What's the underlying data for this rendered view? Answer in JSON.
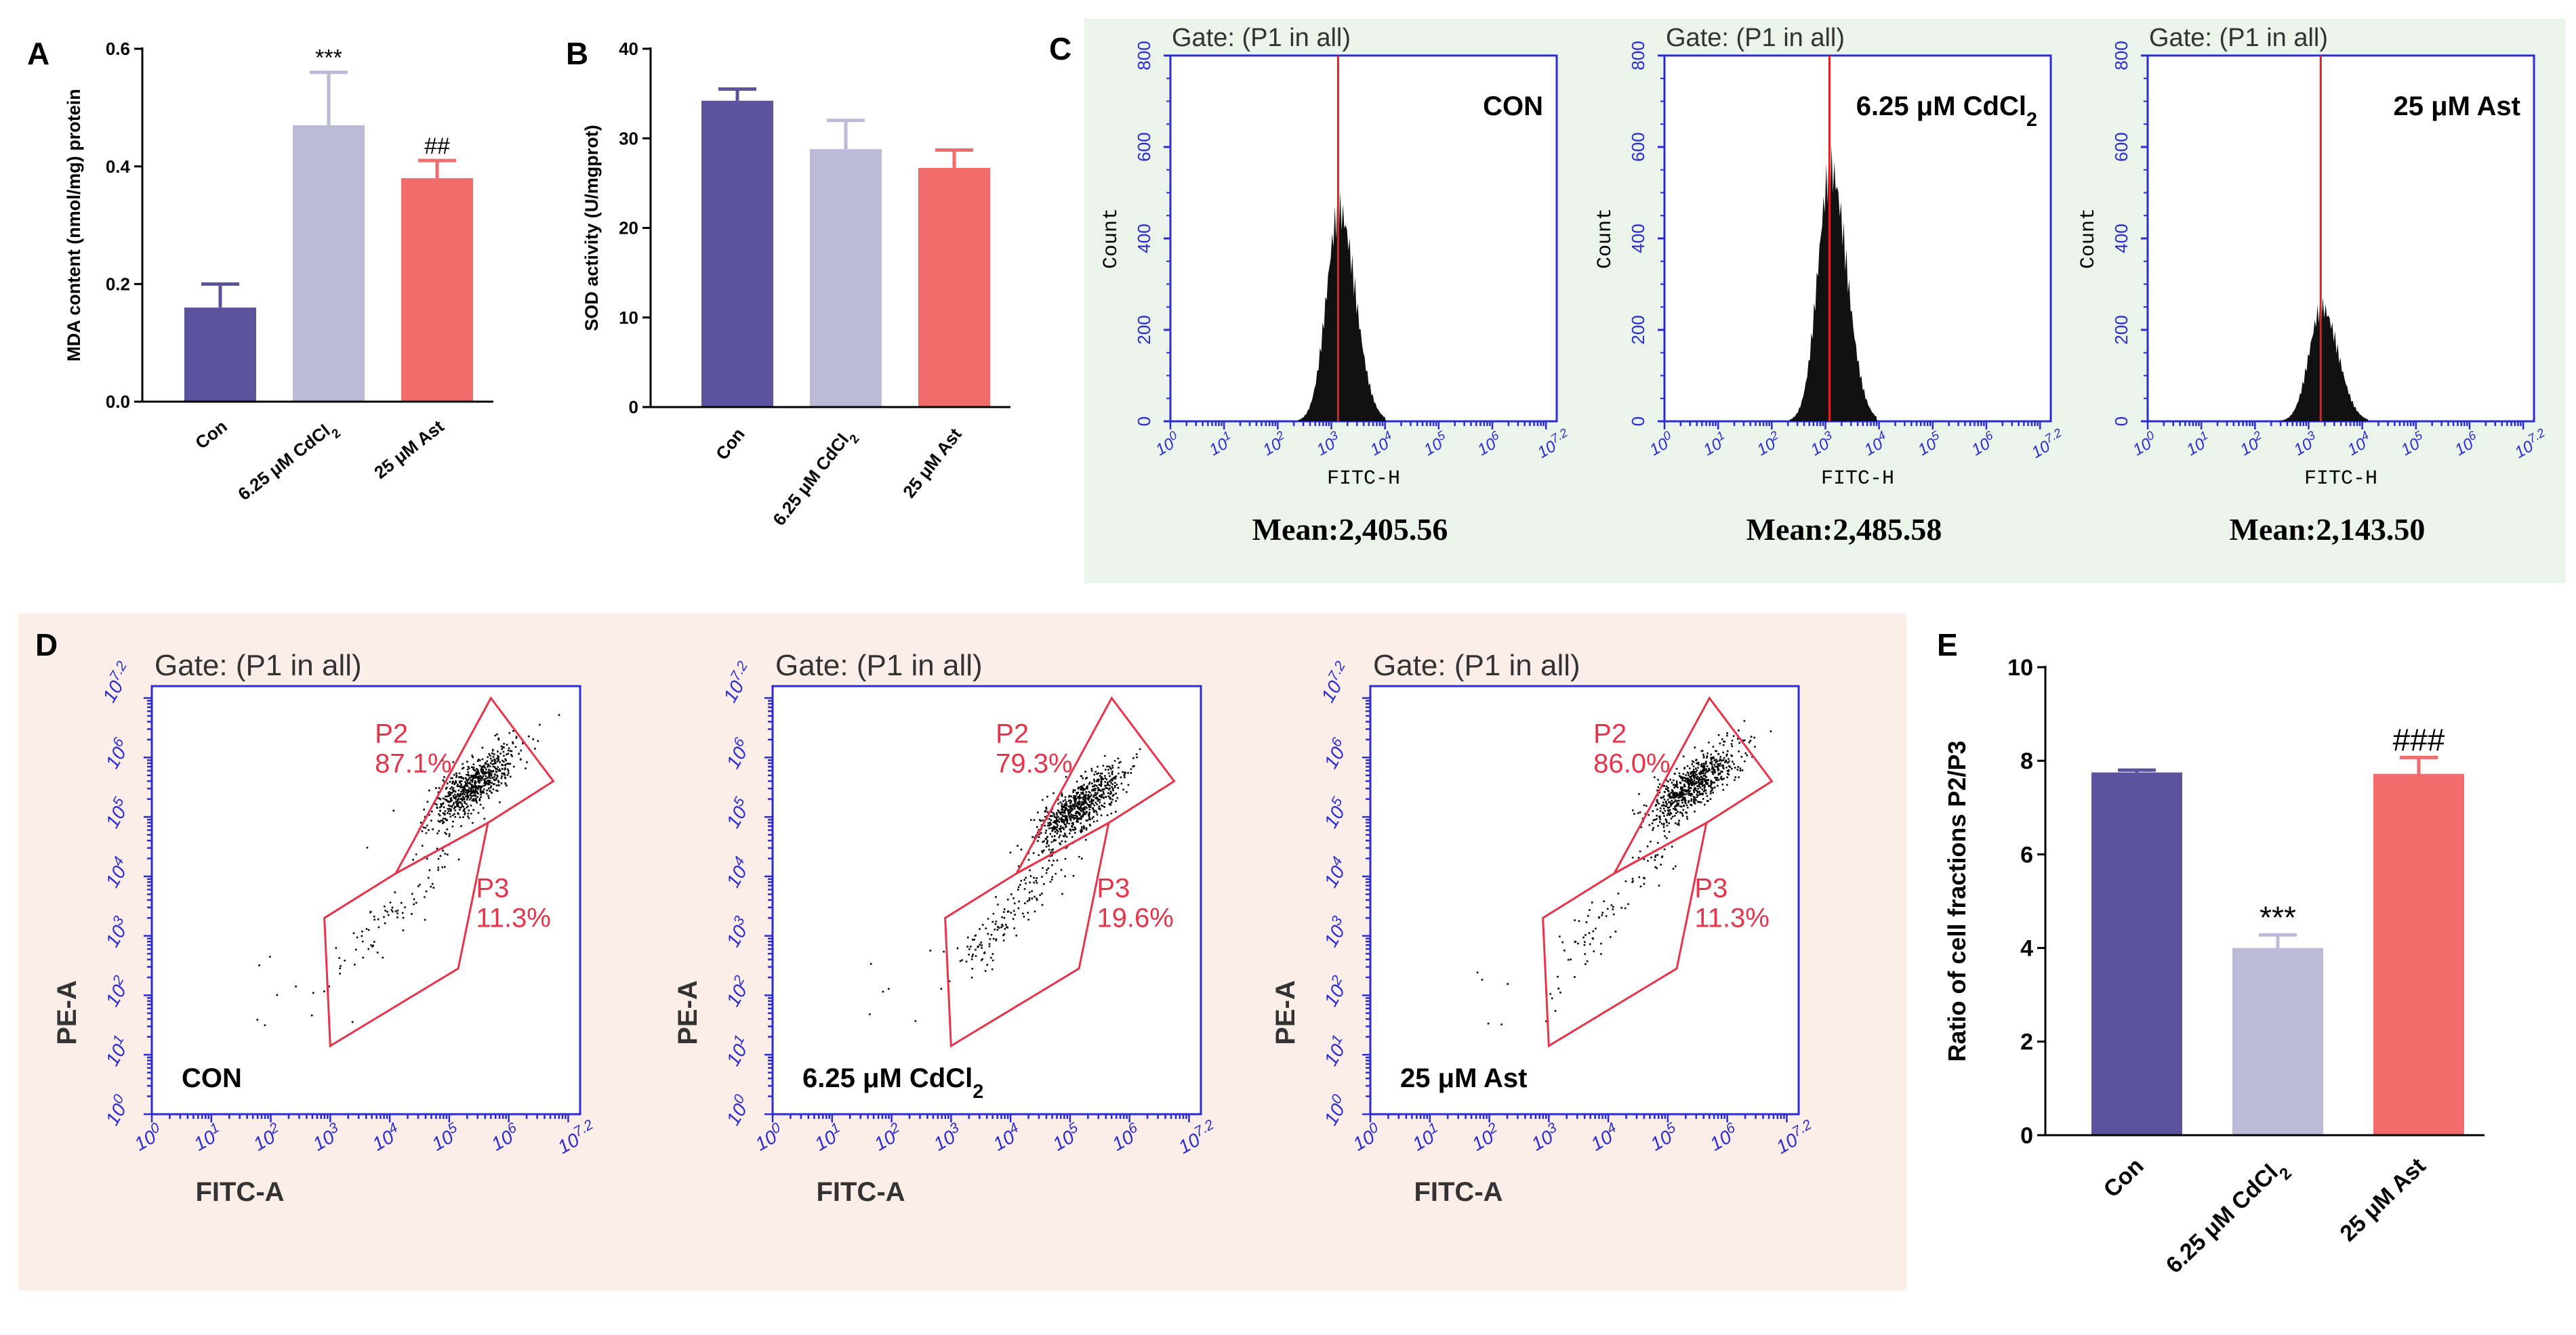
{
  "colors": {
    "con": "#5b539d",
    "cdcl2": "#bcbad7",
    "ast": "#f26b6b",
    "flow_blue": "#2b2bd6",
    "gate_red": "#e8334a",
    "panelC_bg": "#eaf4ea",
    "panelD_bg": "#fbeee9"
  },
  "panel_letters": [
    "A",
    "B",
    "C",
    "D",
    "E"
  ],
  "chart_data": [
    {
      "panel": "A",
      "type": "bar",
      "categories": [
        "Con",
        "6.25 μM CdCl2",
        "25 μM Ast"
      ],
      "values": [
        0.16,
        0.47,
        0.38
      ],
      "errors": [
        0.04,
        0.09,
        0.03
      ],
      "annotations": [
        "",
        "***",
        "##"
      ],
      "ylabel": "MDA content (nmol/mg) protein",
      "ylim": [
        0,
        0.6
      ],
      "yticks": [
        "0.0",
        "0.2",
        "0.4",
        "0.6"
      ],
      "ytick_values": [
        0,
        0.2,
        0.4,
        0.6
      ]
    },
    {
      "panel": "B",
      "type": "bar",
      "categories": [
        "Con",
        "6.25 μM CdCl2",
        "25 μM Ast"
      ],
      "values": [
        34.2,
        28.8,
        26.7
      ],
      "errors": [
        1.3,
        3.2,
        2.0
      ],
      "annotations": [
        "",
        "",
        ""
      ],
      "ylabel": "SOD activity (U/mgprot)",
      "ylim": [
        0,
        40
      ],
      "yticks": [
        "0",
        "10",
        "20",
        "30",
        "40"
      ],
      "ytick_values": [
        0,
        10,
        20,
        30,
        40
      ]
    },
    {
      "panel": "C",
      "type": "histogram",
      "gate": "Gate: (P1 in all)",
      "xlabel": "FITC-H",
      "ylabel": "Count",
      "yticks": [
        "0",
        "200",
        "400",
        "600",
        "800"
      ],
      "xticks": [
        "10^0",
        "10^1",
        "10^2",
        "10^3",
        "10^4",
        "10^5",
        "10^6",
        "10^7.2"
      ],
      "samples": [
        {
          "label": "CON",
          "mean": "Mean:2,405.56",
          "peak_log": 3.15,
          "peak_count": 510
        },
        {
          "label": "6.25 μM CdCl2",
          "mean": "Mean:2,485.58",
          "peak_log": 3.1,
          "peak_count": 610
        },
        {
          "label": "25 μM Ast",
          "mean": "Mean:2,143.50",
          "peak_log": 3.25,
          "peak_count": 275
        }
      ]
    },
    {
      "panel": "D",
      "type": "scatter",
      "gate": "Gate: (P1 in all)",
      "xlabel": "FITC-A",
      "ylabel": "PE-A",
      "ticks": [
        "10^0",
        "10^1",
        "10^2",
        "10^3",
        "10^4",
        "10^5",
        "10^6",
        "10^7.2"
      ],
      "samples": [
        {
          "label": "CON",
          "P2": "87.1%",
          "P3": "11.3%"
        },
        {
          "label": "6.25 μM CdCl2",
          "P2": "79.3%",
          "P3": "19.6%"
        },
        {
          "label": "25 μM Ast",
          "P2": "86.0%",
          "P3": "11.3%"
        }
      ],
      "gate_names": [
        "P2",
        "P3"
      ]
    },
    {
      "panel": "E",
      "type": "bar",
      "categories": [
        "Con",
        "6.25 μM CdCl2",
        "25 μM Ast"
      ],
      "values": [
        7.75,
        4.0,
        7.72
      ],
      "errors": [
        0.05,
        0.28,
        0.35
      ],
      "annotations": [
        "",
        "***",
        "###"
      ],
      "ylabel": "Ratio of cell fractions P2/P3",
      "ylim": [
        0,
        10
      ],
      "yticks": [
        "0",
        "2",
        "4",
        "6",
        "8",
        "10"
      ],
      "ytick_values": [
        0,
        2,
        4,
        6,
        8,
        10
      ]
    }
  ]
}
